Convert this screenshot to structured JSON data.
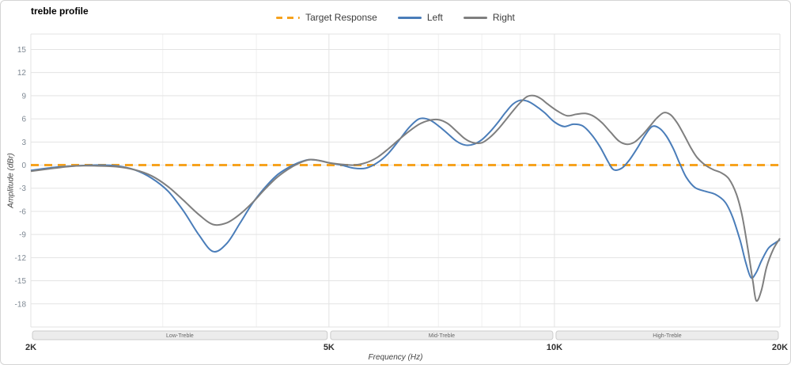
{
  "header": {
    "title": "treble profile"
  },
  "legend": {
    "items": [
      {
        "label": "Target Response",
        "color": "#f6a21e",
        "dashed": true
      },
      {
        "label": "Left",
        "color": "#4a7db9",
        "dashed": false
      },
      {
        "label": "Right",
        "color": "#7f7f7f",
        "dashed": false
      }
    ]
  },
  "axes": {
    "x_label": "Frequency (Hz)",
    "y_label": "Amplitude (dBr)"
  },
  "chart_data": {
    "type": "line",
    "title": "treble profile",
    "xlabel": "Frequency (Hz)",
    "ylabel": "Amplitude (dBr)",
    "x_scale": "log",
    "xlim": [
      2000,
      20000
    ],
    "ylim": [
      -21,
      17
    ],
    "grid": true,
    "legend_position": "top-center",
    "y_ticks": [
      15,
      12,
      9,
      6,
      3,
      0,
      -3,
      -6,
      -9,
      -12,
      -15,
      -18
    ],
    "x_ticks": [
      {
        "value": 2000,
        "label": "2K"
      },
      {
        "value": 5000,
        "label": "5K"
      },
      {
        "value": 10000,
        "label": "10K"
      },
      {
        "value": 20000,
        "label": "20K"
      }
    ],
    "x_minor": [
      3000,
      4000,
      6000,
      7000,
      8000,
      9000
    ],
    "bands": [
      {
        "label": "Low-Treble",
        "from": 2000,
        "to": 5000
      },
      {
        "label": "Mid-Treble",
        "from": 5000,
        "to": 10000
      },
      {
        "label": "High-Treble",
        "from": 10000,
        "to": 20000
      }
    ],
    "series": [
      {
        "name": "Target Response",
        "color": "#f6a21e",
        "dashed": true,
        "width": 3,
        "points": [
          [
            2000,
            0
          ],
          [
            20000,
            0
          ]
        ]
      },
      {
        "name": "Left",
        "color": "#4a7db9",
        "dashed": false,
        "width": 2,
        "points": [
          [
            2000,
            -0.7
          ],
          [
            2150,
            -0.3
          ],
          [
            2300,
            -0.1
          ],
          [
            2450,
            0
          ],
          [
            2600,
            -0.1
          ],
          [
            2750,
            -0.6
          ],
          [
            2900,
            -1.7
          ],
          [
            3050,
            -3.4
          ],
          [
            3200,
            -6
          ],
          [
            3350,
            -9
          ],
          [
            3500,
            -11.2
          ],
          [
            3650,
            -10.2
          ],
          [
            3800,
            -7.6
          ],
          [
            3950,
            -5
          ],
          [
            4100,
            -3
          ],
          [
            4250,
            -1.4
          ],
          [
            4400,
            -0.4
          ],
          [
            4550,
            0.3
          ],
          [
            4700,
            0.7
          ],
          [
            4850,
            0.6
          ],
          [
            5000,
            0.3
          ],
          [
            5200,
            0
          ],
          [
            5400,
            -0.4
          ],
          [
            5600,
            -0.4
          ],
          [
            5800,
            0.3
          ],
          [
            6000,
            1.5
          ],
          [
            6200,
            3.2
          ],
          [
            6400,
            4.9
          ],
          [
            6600,
            6
          ],
          [
            6800,
            5.9
          ],
          [
            7000,
            5.1
          ],
          [
            7200,
            4.1
          ],
          [
            7400,
            3.1
          ],
          [
            7600,
            2.6
          ],
          [
            7800,
            2.7
          ],
          [
            8000,
            3.3
          ],
          [
            8200,
            4.3
          ],
          [
            8400,
            5.5
          ],
          [
            8600,
            6.8
          ],
          [
            8800,
            7.9
          ],
          [
            9000,
            8.4
          ],
          [
            9200,
            8.3
          ],
          [
            9400,
            7.8
          ],
          [
            9700,
            6.8
          ],
          [
            10000,
            5.6
          ],
          [
            10300,
            5
          ],
          [
            10600,
            5.3
          ],
          [
            10900,
            5.1
          ],
          [
            11200,
            4
          ],
          [
            11500,
            2.4
          ],
          [
            11800,
            0.4
          ],
          [
            12000,
            -0.6
          ],
          [
            12300,
            -0.4
          ],
          [
            12600,
            0.7
          ],
          [
            12900,
            2.2
          ],
          [
            13200,
            3.8
          ],
          [
            13500,
            5
          ],
          [
            13800,
            4.8
          ],
          [
            14100,
            3.8
          ],
          [
            14400,
            2.2
          ],
          [
            14700,
            0.2
          ],
          [
            15000,
            -1.6
          ],
          [
            15400,
            -2.9
          ],
          [
            15900,
            -3.4
          ],
          [
            16400,
            -3.8
          ],
          [
            16900,
            -4.8
          ],
          [
            17300,
            -6.8
          ],
          [
            17700,
            -9.8
          ],
          [
            18000,
            -12.6
          ],
          [
            18300,
            -14.6
          ],
          [
            18600,
            -13.9
          ],
          [
            18900,
            -12.4
          ],
          [
            19300,
            -10.8
          ],
          [
            19700,
            -10.1
          ],
          [
            20000,
            -9.7
          ]
        ]
      },
      {
        "name": "Right",
        "color": "#7f7f7f",
        "dashed": false,
        "width": 2,
        "points": [
          [
            2000,
            -0.8
          ],
          [
            2150,
            -0.4
          ],
          [
            2300,
            -0.1
          ],
          [
            2450,
            -0.1
          ],
          [
            2600,
            -0.2
          ],
          [
            2750,
            -0.6
          ],
          [
            2900,
            -1.4
          ],
          [
            3050,
            -2.8
          ],
          [
            3200,
            -4.6
          ],
          [
            3350,
            -6.4
          ],
          [
            3500,
            -7.7
          ],
          [
            3650,
            -7.5
          ],
          [
            3800,
            -6.4
          ],
          [
            3950,
            -4.9
          ],
          [
            4100,
            -3.2
          ],
          [
            4250,
            -1.7
          ],
          [
            4400,
            -0.6
          ],
          [
            4550,
            0.2
          ],
          [
            4700,
            0.7
          ],
          [
            4850,
            0.6
          ],
          [
            5000,
            0.3
          ],
          [
            5200,
            0.1
          ],
          [
            5400,
            0
          ],
          [
            5600,
            0.3
          ],
          [
            5800,
            1
          ],
          [
            6000,
            2.1
          ],
          [
            6200,
            3.3
          ],
          [
            6400,
            4.4
          ],
          [
            6600,
            5.3
          ],
          [
            6800,
            5.8
          ],
          [
            7000,
            5.9
          ],
          [
            7200,
            5.4
          ],
          [
            7400,
            4.4
          ],
          [
            7600,
            3.4
          ],
          [
            7800,
            2.9
          ],
          [
            8000,
            2.9
          ],
          [
            8200,
            3.6
          ],
          [
            8400,
            4.6
          ],
          [
            8600,
            5.8
          ],
          [
            8800,
            7
          ],
          [
            9000,
            8.1
          ],
          [
            9200,
            8.9
          ],
          [
            9400,
            9
          ],
          [
            9600,
            8.6
          ],
          [
            9800,
            7.9
          ],
          [
            10100,
            7
          ],
          [
            10400,
            6.4
          ],
          [
            10700,
            6.6
          ],
          [
            11000,
            6.7
          ],
          [
            11300,
            6.3
          ],
          [
            11600,
            5.4
          ],
          [
            11900,
            4.2
          ],
          [
            12200,
            3.1
          ],
          [
            12500,
            2.7
          ],
          [
            12800,
            3
          ],
          [
            13100,
            3.9
          ],
          [
            13400,
            5
          ],
          [
            13700,
            6.1
          ],
          [
            14000,
            6.8
          ],
          [
            14300,
            6.5
          ],
          [
            14600,
            5.4
          ],
          [
            14900,
            3.9
          ],
          [
            15200,
            2.3
          ],
          [
            15500,
            1
          ],
          [
            15900,
            0
          ],
          [
            16300,
            -0.6
          ],
          [
            16700,
            -1
          ],
          [
            17100,
            -1.8
          ],
          [
            17500,
            -3.8
          ],
          [
            17800,
            -6.5
          ],
          [
            18100,
            -10.5
          ],
          [
            18400,
            -15
          ],
          [
            18600,
            -17.6
          ],
          [
            18900,
            -16.2
          ],
          [
            19200,
            -13.2
          ],
          [
            19600,
            -10.9
          ],
          [
            20000,
            -9.5
          ]
        ]
      }
    ]
  }
}
